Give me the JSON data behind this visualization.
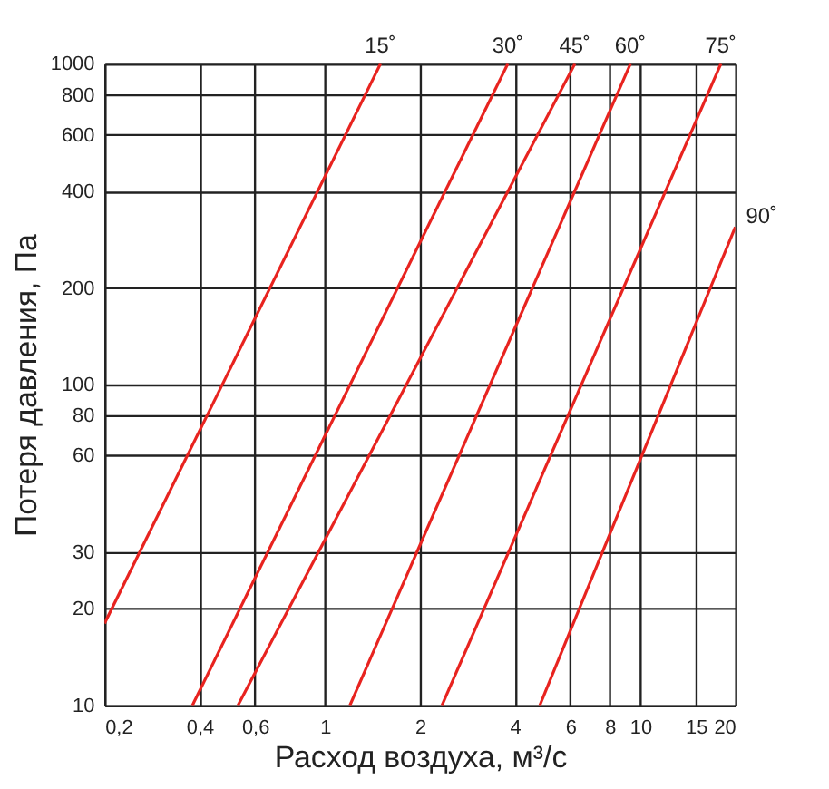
{
  "chart_data": {
    "type": "line",
    "xlabel": "Расход воздуха, м³/с",
    "ylabel": "Потеря давления, Па",
    "log": "xy",
    "grid": true,
    "legend": false,
    "marker": "none",
    "line_style": "solid",
    "xlim": [
      0.2,
      20
    ],
    "ylim": [
      10,
      1000
    ],
    "xticks": [
      {
        "value": 0.2,
        "label": "0,2"
      },
      {
        "value": 0.4,
        "label": "0,4"
      },
      {
        "value": 0.6,
        "label": "0,6"
      },
      1,
      2,
      4,
      6,
      8,
      10,
      15,
      20
    ],
    "yticks": [
      10,
      20,
      30,
      60,
      80,
      100,
      200,
      400,
      600,
      800,
      1000
    ],
    "series": [
      {
        "name": "15˚",
        "color": "#e8231f",
        "x": [
          0.2,
          1.5
        ],
        "values": [
          18,
          1000
        ]
      },
      {
        "name": "30˚",
        "color": "#e8231f",
        "x": [
          0.38,
          3.8
        ],
        "values": [
          10,
          1000
        ]
      },
      {
        "name": "45˚",
        "color": "#e8231f",
        "x": [
          0.53,
          6.2
        ],
        "values": [
          10,
          1000
        ]
      },
      {
        "name": "60˚",
        "color": "#e8231f",
        "x": [
          1.2,
          9.3
        ],
        "values": [
          10,
          1000
        ]
      },
      {
        "name": "75˚",
        "color": "#e8231f",
        "x": [
          2.35,
          18
        ],
        "values": [
          10,
          1000
        ]
      },
      {
        "name": "90˚",
        "color": "#e8231f",
        "x": [
          4.8,
          20
        ],
        "values": [
          10,
          310
        ]
      }
    ]
  }
}
